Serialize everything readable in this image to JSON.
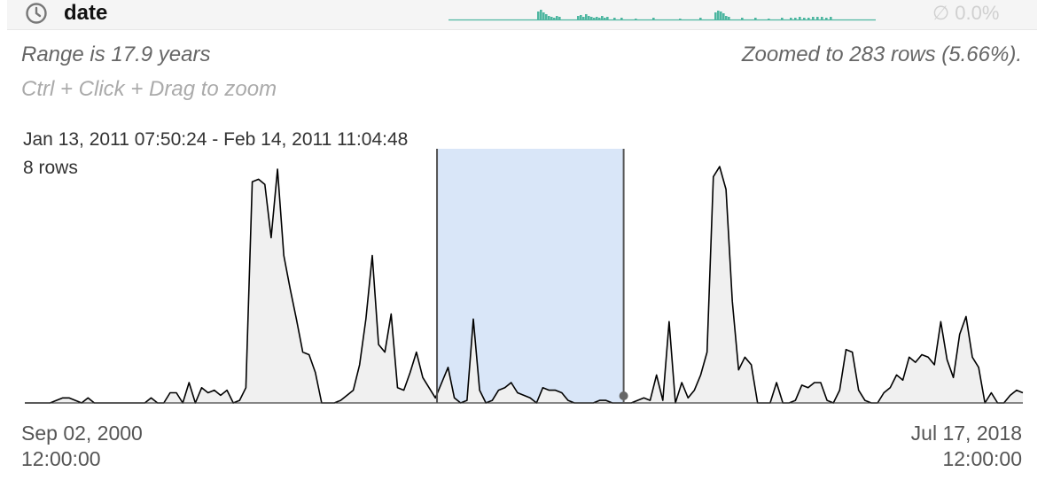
{
  "header": {
    "column_name": "date",
    "icon": "clock-icon",
    "null_percent": "∅ 0.0%",
    "accent_color": "#4db6a0"
  },
  "summary": {
    "range_text": "Range is 17.9 years",
    "zoom_text": "Zoomed to 283 rows (5.66%).",
    "hint_text": "Ctrl + Click + Drag to zoom"
  },
  "tooltip": {
    "range": "Jan 13, 2011 07:50:24 - Feb 14, 2011 11:04:48",
    "rows": "8 rows"
  },
  "axis": {
    "min_date": "Sep 02, 2000",
    "min_time": "12:00:00",
    "max_date": "Jul 17, 2018",
    "max_time": "12:00:00"
  },
  "chart_data": {
    "type": "area",
    "x_start": "Sep 02, 2000 12:00:00",
    "x_end": "Jul 17, 2018 12:00:00",
    "ylim": [
      0,
      10
    ],
    "grid": false,
    "selection": {
      "start_fraction": 0.413,
      "end_fraction": 0.6
    },
    "hover_fraction": 0.6,
    "fill_color": "#f0f0f0",
    "line_color": "#000000",
    "selection_color": "#d9e6f8",
    "values": [
      0,
      0,
      0,
      0,
      0,
      0.1,
      0.2,
      0.2,
      0.1,
      0,
      0.2,
      0,
      0,
      0,
      0,
      0,
      0,
      0,
      0,
      0,
      0.2,
      0,
      0,
      0.4,
      0.4,
      0,
      0.8,
      0,
      0.6,
      0.4,
      0.5,
      0.3,
      0.5,
      0,
      0.1,
      0.6,
      8.7,
      8.8,
      8.6,
      6.5,
      9.2,
      5.8,
      4.5,
      3.3,
      2.0,
      1.9,
      1.2,
      0,
      0,
      0,
      0.1,
      0.3,
      0.5,
      1.5,
      3.3,
      5.8,
      2.3,
      2.0,
      3.5,
      0.6,
      0.5,
      1.2,
      2.0,
      1.0,
      0.6,
      0.2,
      0.8,
      1.4,
      0.2,
      0,
      0.1,
      3.3,
      0.5,
      0,
      0.1,
      0.5,
      0.6,
      0.8,
      0.4,
      0.3,
      0.2,
      0,
      0.6,
      0.5,
      0.5,
      0.4,
      0.1,
      0,
      0,
      0,
      0,
      0.1,
      0.1,
      0,
      0,
      0,
      0,
      0.1,
      0.2,
      0.1,
      1.1,
      0.1,
      3.2,
      0,
      0.8,
      0.2,
      0.5,
      1.1,
      2.0,
      8.9,
      9.3,
      8.4,
      4.0,
      1.3,
      1.8,
      1.5,
      0,
      0,
      0,
      0.8,
      0,
      0,
      0.1,
      0.7,
      0.6,
      0.8,
      0.8,
      0.1,
      0,
      0.5,
      2.1,
      2.0,
      0.5,
      0.1,
      0,
      0,
      0.4,
      0.6,
      1.1,
      0.9,
      1.8,
      1.6,
      1.9,
      1.8,
      1.5,
      3.2,
      1.7,
      1.0,
      2.7,
      3.4,
      1.8,
      1.4,
      0,
      0.4,
      0,
      0,
      0.3,
      0.5,
      0.4
    ]
  }
}
